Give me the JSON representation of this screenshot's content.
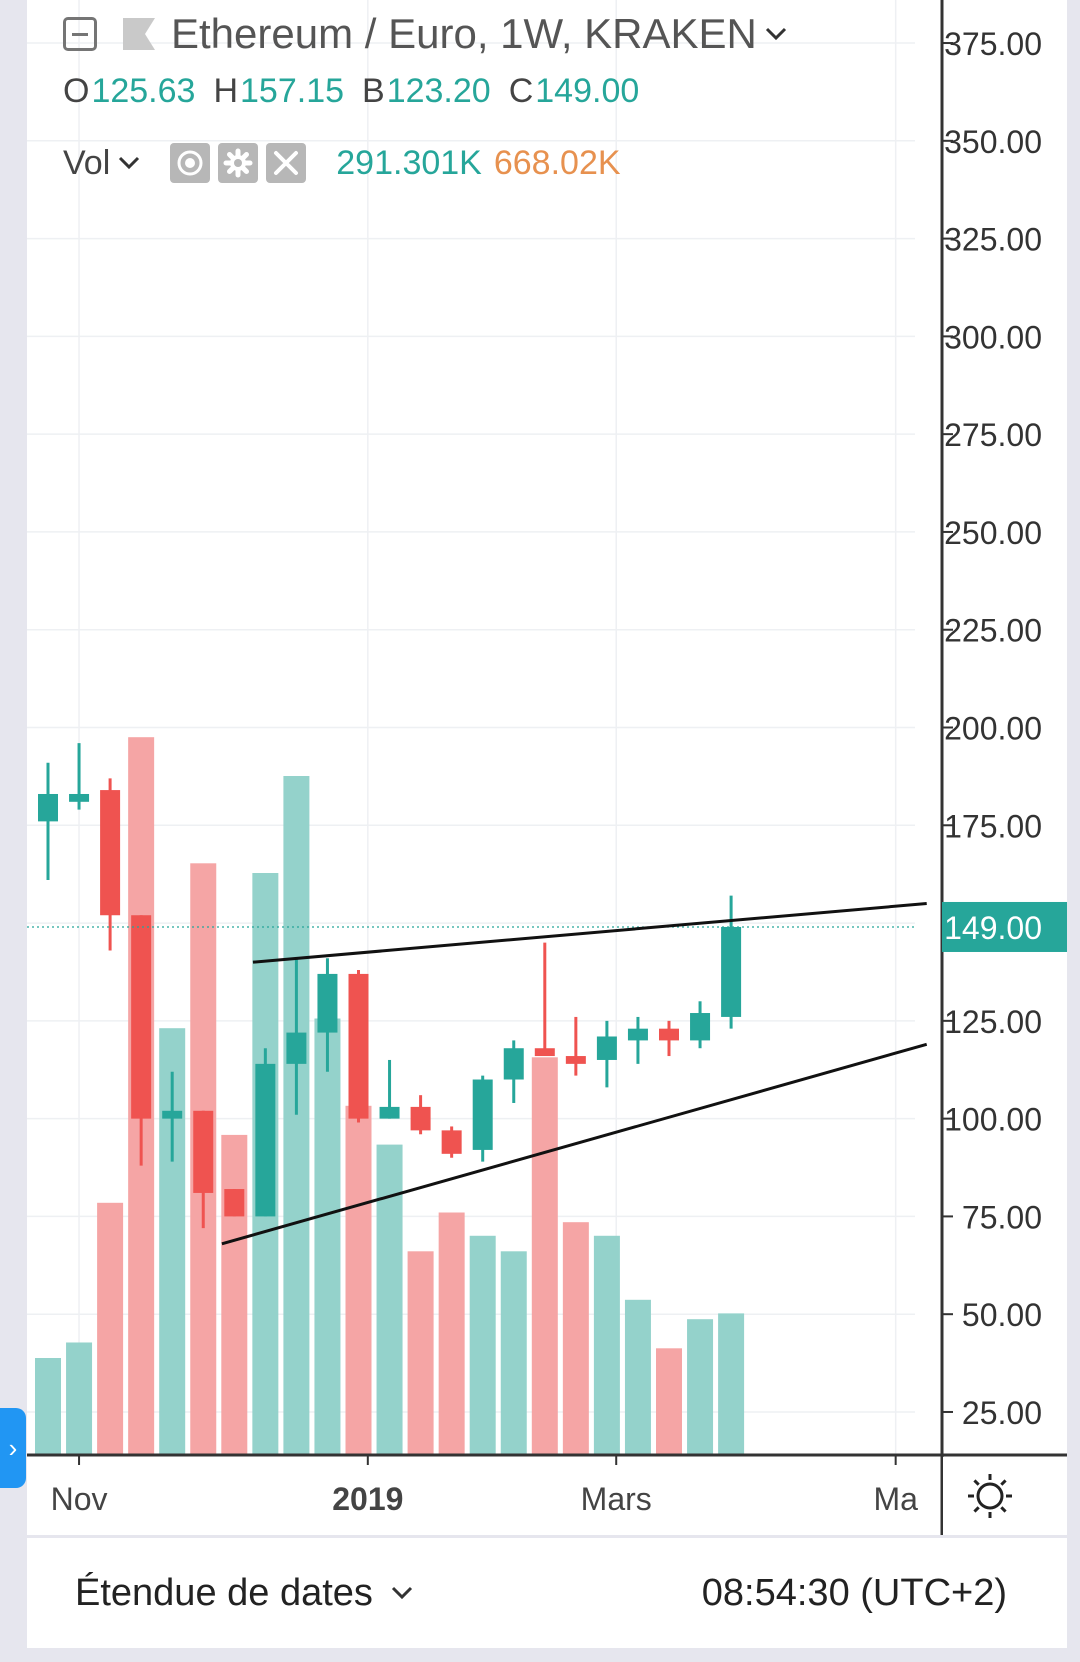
{
  "legend": {
    "title": "Ethereum / Euro, 1W, KRAKEN",
    "ohlc": [
      {
        "key": "O",
        "value": "125.63"
      },
      {
        "key": "H",
        "value": "157.15"
      },
      {
        "key": "B",
        "value": "123.20"
      },
      {
        "key": "C",
        "value": "149.00"
      }
    ],
    "volume_label": "Vol",
    "volume_value_1": "291.301K",
    "volume_value_2": "668.02K"
  },
  "icons": {
    "collapse": "collapse-icon",
    "symbol": "flag-icon",
    "dropdown": "chevron-down-icon",
    "visibility": "eye-icon",
    "settings": "gear-icon",
    "remove": "close-icon",
    "chart_settings": "sun-settings-icon",
    "side_panel": "chevron-right-icon"
  },
  "bottom_bar": {
    "range_label": "Étendue de dates",
    "clock": "08:54:30 (UTC+2)",
    "side_panel_glyph": "›"
  },
  "colors": {
    "up": "#26a69a",
    "down": "#ef5350",
    "vol_up": "#94d2cb",
    "vol_down": "#f5a5a5",
    "price_tag": "#26a69a"
  },
  "chart_data": {
    "type": "candlestick",
    "y_axis": {
      "range": [
        14,
        386
      ],
      "ticks": [
        25,
        50,
        75,
        100,
        125,
        150,
        175,
        200,
        225,
        250,
        275,
        300,
        325,
        350,
        375
      ],
      "tick_labels": [
        "25.00",
        "50.00",
        "75.00",
        "100.00",
        "125.00",
        "150.00",
        "175.00",
        "200.00",
        "225.00",
        "250.00",
        "275.00",
        "300.00",
        "325.00",
        "350.00",
        "375.00"
      ]
    },
    "x_axis": {
      "labels": [
        {
          "text": "Nov",
          "index": 1.0,
          "bold": false
        },
        {
          "text": "2019",
          "index": 10.3,
          "bold": true
        },
        {
          "text": "Mars",
          "index": 18.3,
          "bold": false
        },
        {
          "text": "Ma",
          "index": 27.3,
          "bold": false
        }
      ]
    },
    "last_price": {
      "value": 149.0,
      "label": "149.00"
    },
    "grid": true,
    "candles": [
      {
        "open": 176,
        "high": 191,
        "low": 161,
        "close": 183
      },
      {
        "open": 181,
        "high": 196,
        "low": 179,
        "close": 183
      },
      {
        "open": 184,
        "high": 187,
        "low": 143,
        "close": 152
      },
      {
        "open": 152,
        "high": 152,
        "low": 88,
        "close": 100
      },
      {
        "open": 100,
        "high": 112,
        "low": 89,
        "close": 102
      },
      {
        "open": 102,
        "high": 102,
        "low": 72,
        "close": 81
      },
      {
        "open": 82,
        "high": 82,
        "low": 75,
        "close": 75
      },
      {
        "open": 75,
        "high": 118,
        "low": 75,
        "close": 114
      },
      {
        "open": 114,
        "high": 141,
        "low": 101,
        "close": 122
      },
      {
        "open": 122,
        "high": 141,
        "low": 112,
        "close": 137
      },
      {
        "open": 137,
        "high": 138,
        "low": 99,
        "close": 100
      },
      {
        "open": 100,
        "high": 115,
        "low": 100,
        "close": 103
      },
      {
        "open": 103,
        "high": 106,
        "low": 96,
        "close": 97
      },
      {
        "open": 97,
        "high": 98,
        "low": 90,
        "close": 91
      },
      {
        "open": 92,
        "high": 111,
        "low": 89,
        "close": 110
      },
      {
        "open": 110,
        "high": 120,
        "low": 104,
        "close": 118
      },
      {
        "open": 118,
        "high": 145,
        "low": 116,
        "close": 116
      },
      {
        "open": 116,
        "high": 126,
        "low": 111,
        "close": 114
      },
      {
        "open": 115,
        "high": 125,
        "low": 108,
        "close": 121
      },
      {
        "open": 120,
        "high": 126,
        "low": 114,
        "close": 123
      },
      {
        "open": 123,
        "high": 125,
        "low": 116,
        "close": 120
      },
      {
        "open": 120,
        "high": 130,
        "low": 118,
        "close": 127
      },
      {
        "open": 126,
        "high": 157,
        "low": 123,
        "close": 149
      }
    ],
    "volume_axis_max": 750,
    "volume": [
      {
        "value": 50,
        "up": true
      },
      {
        "value": 58,
        "up": true
      },
      {
        "value": 130,
        "up": false
      },
      {
        "value": 370,
        "up": false
      },
      {
        "value": 220,
        "up": true
      },
      {
        "value": 305,
        "up": false
      },
      {
        "value": 165,
        "up": false
      },
      {
        "value": 300,
        "up": true
      },
      {
        "value": 350,
        "up": true
      },
      {
        "value": 225,
        "up": true
      },
      {
        "value": 180,
        "up": false
      },
      {
        "value": 160,
        "up": true
      },
      {
        "value": 105,
        "up": false
      },
      {
        "value": 125,
        "up": false
      },
      {
        "value": 113,
        "up": true
      },
      {
        "value": 105,
        "up": true
      },
      {
        "value": 205,
        "up": false
      },
      {
        "value": 120,
        "up": false
      },
      {
        "value": 113,
        "up": true
      },
      {
        "value": 80,
        "up": true
      },
      {
        "value": 55,
        "up": false
      },
      {
        "value": 70,
        "up": true
      },
      {
        "value": 73,
        "up": true
      }
    ],
    "trend_lines": [
      {
        "from": {
          "index": 6.6,
          "value": 140
        },
        "to": {
          "index": 28.3,
          "value": 155
        }
      },
      {
        "from": {
          "index": 5.6,
          "value": 68
        },
        "to": {
          "index": 28.3,
          "value": 119
        }
      }
    ]
  }
}
